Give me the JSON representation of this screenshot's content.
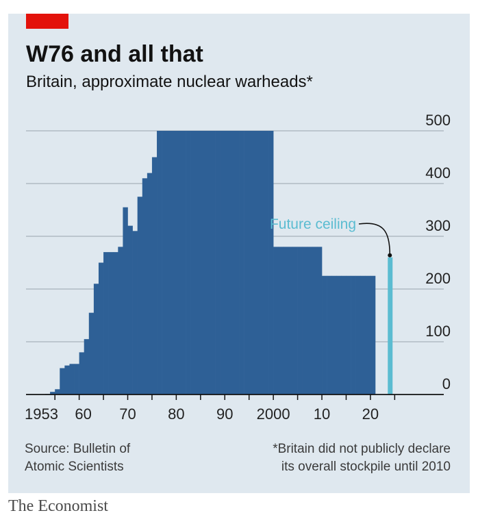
{
  "brand": "The Economist",
  "chart_data": {
    "type": "bar",
    "title": "W76 and all that",
    "subtitle": "Britain, approximate nuclear warheads*",
    "xlabel": "",
    "ylabel": "",
    "ylim": [
      0,
      500
    ],
    "yticks": [
      0,
      100,
      200,
      300,
      400,
      500
    ],
    "y_axis_side": "right",
    "xticks": [
      {
        "value": 1953,
        "label": "1953"
      },
      {
        "value": 1960,
        "label": "60"
      },
      {
        "value": 1970,
        "label": "70"
      },
      {
        "value": 1980,
        "label": "80"
      },
      {
        "value": 1990,
        "label": "90"
      },
      {
        "value": 2000,
        "label": "2000"
      },
      {
        "value": 2010,
        "label": "10"
      },
      {
        "value": 2020,
        "label": "20"
      }
    ],
    "grid": true,
    "years": [
      1953,
      1954,
      1955,
      1956,
      1957,
      1958,
      1959,
      1960,
      1961,
      1962,
      1963,
      1964,
      1965,
      1966,
      1967,
      1968,
      1969,
      1970,
      1971,
      1972,
      1973,
      1974,
      1975,
      1976,
      1977,
      1978,
      1979,
      1980,
      1981,
      1982,
      1983,
      1984,
      1985,
      1986,
      1987,
      1988,
      1989,
      1990,
      1991,
      1992,
      1993,
      1994,
      1995,
      1996,
      1997,
      1998,
      1999,
      2000,
      2001,
      2002,
      2003,
      2004,
      2005,
      2006,
      2007,
      2008,
      2009,
      2010,
      2011,
      2012,
      2013,
      2014,
      2015,
      2016,
      2017,
      2018,
      2019,
      2020
    ],
    "values": [
      1,
      5,
      10,
      50,
      55,
      58,
      58,
      80,
      105,
      155,
      210,
      250,
      270,
      270,
      270,
      280,
      355,
      320,
      310,
      375,
      410,
      420,
      450,
      500,
      500,
      500,
      500,
      500,
      500,
      500,
      500,
      500,
      500,
      500,
      500,
      500,
      500,
      500,
      500,
      500,
      500,
      500,
      500,
      500,
      500,
      500,
      500,
      280,
      280,
      280,
      280,
      280,
      280,
      280,
      280,
      280,
      280,
      225,
      225,
      225,
      225,
      225,
      225,
      225,
      225,
      225,
      225,
      225
    ],
    "future": {
      "year": 2024,
      "value": 260,
      "label": "Future ceiling"
    },
    "source": [
      "Source: Bulletin of",
      "Atomic Scientists"
    ],
    "footnote": [
      "*Britain did not publicly declare",
      "its overall stockpile until 2010"
    ],
    "colors": {
      "bars": "#2e6096",
      "future": "#5bbcd1",
      "grid": "#9aa5ad",
      "background": "#dfe8ef"
    }
  }
}
